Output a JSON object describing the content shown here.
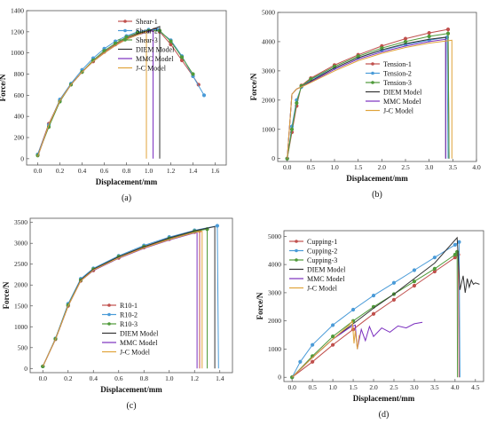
{
  "chart_data": [
    {
      "type": "line",
      "caption": "(a)",
      "xlabel": "Displacement/mm",
      "ylabel": "Force/N",
      "xlim": [
        -0.1,
        1.7
      ],
      "ylim": [
        -60,
        1400
      ],
      "xticks": [
        0.0,
        0.2,
        0.4,
        0.6,
        0.8,
        1.0,
        1.2,
        1.4,
        1.6
      ],
      "xtick_labels": [
        "0.0",
        "0.2",
        "0.4",
        "0.6",
        "0.8",
        "1.0",
        "1.2",
        "1.4",
        "1.6"
      ],
      "yticks": [
        0,
        200,
        400,
        600,
        800,
        1000,
        1200,
        1400
      ],
      "ytick_labels": [
        "0",
        "200",
        "400",
        "600",
        "800",
        "1000",
        "1200",
        "1400"
      ],
      "legend_position": "top-right",
      "grid": false,
      "series": [
        {
          "name": "Shear-1",
          "color": "#c0504d",
          "marker": "circle",
          "x": [
            0,
            0.1,
            0.2,
            0.3,
            0.4,
            0.5,
            0.6,
            0.7,
            0.8,
            0.9,
            1.0,
            1.05,
            1.1,
            1.2,
            1.3,
            1.4,
            1.45
          ],
          "y": [
            40,
            330,
            550,
            700,
            820,
            920,
            1010,
            1080,
            1140,
            1190,
            1210,
            1220,
            1200,
            1080,
            930,
            780,
            700
          ]
        },
        {
          "name": "Shear-2",
          "color": "#4a9bd8",
          "marker": "circle",
          "x": [
            0,
            0.1,
            0.2,
            0.3,
            0.4,
            0.5,
            0.6,
            0.7,
            0.8,
            0.9,
            1.0,
            1.08,
            1.2,
            1.3,
            1.4,
            1.5
          ],
          "y": [
            40,
            320,
            560,
            710,
            840,
            950,
            1040,
            1110,
            1160,
            1200,
            1220,
            1220,
            1120,
            970,
            780,
            600
          ]
        },
        {
          "name": "Shear-3",
          "color": "#4f9a3a",
          "marker": "circle",
          "x": [
            0,
            0.1,
            0.2,
            0.3,
            0.4,
            0.5,
            0.6,
            0.7,
            0.8,
            0.9,
            1.0,
            1.1,
            1.2,
            1.3,
            1.4
          ],
          "y": [
            30,
            300,
            540,
            700,
            820,
            930,
            1020,
            1090,
            1150,
            1190,
            1210,
            1210,
            1110,
            960,
            800
          ]
        },
        {
          "name": "DIEM Model",
          "color": "#333333",
          "marker": "none",
          "x": [
            0,
            0.1,
            0.2,
            0.3,
            0.4,
            0.5,
            0.6,
            0.7,
            0.8,
            0.9,
            1.0,
            1.1,
            1.1
          ],
          "y": [
            20,
            320,
            550,
            700,
            820,
            920,
            1000,
            1070,
            1130,
            1180,
            1210,
            1250,
            0
          ]
        },
        {
          "name": "MMC Model",
          "color": "#7b2fbf",
          "marker": "none",
          "x": [
            0,
            0.1,
            0.2,
            0.3,
            0.4,
            0.5,
            0.6,
            0.7,
            0.8,
            0.9,
            1.0,
            1.04,
            1.04
          ],
          "y": [
            20,
            320,
            550,
            700,
            820,
            920,
            1000,
            1070,
            1130,
            1170,
            1200,
            1210,
            0
          ]
        },
        {
          "name": "J-C Model",
          "color": "#e0a33a",
          "marker": "none",
          "x": [
            0,
            0.1,
            0.2,
            0.3,
            0.4,
            0.5,
            0.6,
            0.7,
            0.8,
            0.9,
            0.98,
            0.98
          ],
          "y": [
            20,
            320,
            550,
            700,
            820,
            920,
            1000,
            1070,
            1130,
            1170,
            1200,
            0
          ]
        }
      ]
    },
    {
      "type": "line",
      "caption": "(b)",
      "xlabel": "Displacement/mm",
      "ylabel": "Force/N",
      "xlim": [
        -0.2,
        4.0
      ],
      "ylim": [
        -100,
        5000
      ],
      "xticks": [
        0.0,
        0.5,
        1.0,
        1.5,
        2.0,
        2.5,
        3.0,
        3.5,
        4.0
      ],
      "xtick_labels": [
        "0.0",
        "0.5",
        "1.0",
        "1.5",
        "2.0",
        "2.5",
        "3.0",
        "3.5",
        "4.0"
      ],
      "yticks": [
        0,
        1000,
        2000,
        3000,
        4000,
        5000
      ],
      "ytick_labels": [
        "0",
        "1000",
        "2000",
        "3000",
        "4000",
        "5000"
      ],
      "legend_position": "center-right",
      "grid": false,
      "series": [
        {
          "name": "Tension-1",
          "color": "#c0504d",
          "marker": "circle",
          "x": [
            0,
            0.1,
            0.2,
            0.3,
            0.5,
            1.0,
            1.5,
            2.0,
            2.5,
            3.0,
            3.4,
            3.42
          ],
          "y": [
            0,
            900,
            1800,
            2500,
            2750,
            3200,
            3550,
            3850,
            4100,
            4300,
            4420,
            0
          ]
        },
        {
          "name": "Tension-2",
          "color": "#4a9bd8",
          "marker": "circle",
          "x": [
            0,
            0.1,
            0.2,
            0.3,
            0.5,
            1.0,
            1.5,
            2.0,
            2.5,
            3.0,
            3.38,
            3.4
          ],
          "y": [
            0,
            1100,
            2000,
            2450,
            2700,
            3100,
            3450,
            3700,
            3900,
            4050,
            4150,
            0
          ]
        },
        {
          "name": "Tension-3",
          "color": "#4f9a3a",
          "marker": "circle",
          "x": [
            0,
            0.1,
            0.2,
            0.3,
            0.5,
            1.0,
            1.5,
            2.0,
            2.5,
            3.0,
            3.4,
            3.42
          ],
          "y": [
            0,
            1000,
            1900,
            2480,
            2720,
            3150,
            3500,
            3780,
            4000,
            4180,
            4280,
            0
          ]
        },
        {
          "name": "DIEM Model",
          "color": "#333333",
          "marker": "none",
          "x": [
            0,
            0.1,
            0.2,
            0.3,
            0.5,
            1.0,
            1.5,
            2.0,
            2.5,
            3.0,
            3.35,
            3.35
          ],
          "y": [
            0,
            2200,
            2380,
            2450,
            2650,
            3100,
            3450,
            3720,
            3930,
            4080,
            4150,
            0
          ]
        },
        {
          "name": "MMC Model",
          "color": "#7b2fbf",
          "marker": "none",
          "x": [
            0,
            0.1,
            0.2,
            0.3,
            0.5,
            1.0,
            1.5,
            2.0,
            2.5,
            3.0,
            3.35,
            3.35
          ],
          "y": [
            0,
            2200,
            2380,
            2450,
            2620,
            3050,
            3400,
            3650,
            3850,
            4000,
            4080,
            0
          ]
        },
        {
          "name": "J-C Model",
          "color": "#e0a33a",
          "marker": "none",
          "x": [
            0,
            0.1,
            0.2,
            0.3,
            0.5,
            1.0,
            1.5,
            2.0,
            2.5,
            3.0,
            3.48,
            3.48
          ],
          "y": [
            0,
            2200,
            2380,
            2450,
            2600,
            3000,
            3350,
            3600,
            3800,
            3950,
            4050,
            0
          ]
        }
      ]
    },
    {
      "type": "line",
      "caption": "(c)",
      "xlabel": "Displacement/mm",
      "ylabel": "Force/N",
      "xlim": [
        -0.1,
        1.5
      ],
      "ylim": [
        -100,
        3600
      ],
      "xticks": [
        0.0,
        0.2,
        0.4,
        0.6,
        0.8,
        1.0,
        1.2,
        1.4
      ],
      "xtick_labels": [
        "0.0",
        "0.2",
        "0.4",
        "0.6",
        "0.8",
        "1.0",
        "1.2",
        "1.4"
      ],
      "yticks": [
        0,
        500,
        1000,
        1500,
        2000,
        2500,
        3000,
        3500
      ],
      "ytick_labels": [
        "0",
        "500",
        "1000",
        "1500",
        "2000",
        "2500",
        "3000",
        "3500"
      ],
      "legend_position": "center-right",
      "grid": false,
      "series": [
        {
          "name": "R10-1",
          "color": "#c0504d",
          "marker": "circle",
          "x": [
            0,
            0.1,
            0.2,
            0.3,
            0.4,
            0.6,
            0.8,
            1.0,
            1.2,
            1.24,
            1.24
          ],
          "y": [
            50,
            700,
            1500,
            2100,
            2350,
            2650,
            2900,
            3100,
            3270,
            3300,
            0
          ]
        },
        {
          "name": "R10-2",
          "color": "#4a9bd8",
          "marker": "circle",
          "x": [
            0,
            0.1,
            0.2,
            0.3,
            0.4,
            0.6,
            0.8,
            1.0,
            1.2,
            1.38,
            1.39
          ],
          "y": [
            50,
            720,
            1550,
            2150,
            2400,
            2700,
            2950,
            3150,
            3310,
            3420,
            0
          ]
        },
        {
          "name": "R10-3",
          "color": "#4f9a3a",
          "marker": "circle",
          "x": [
            0,
            0.1,
            0.2,
            0.3,
            0.4,
            0.6,
            0.8,
            1.0,
            1.2,
            1.3,
            1.3
          ],
          "y": [
            50,
            710,
            1520,
            2120,
            2380,
            2680,
            2920,
            3120,
            3290,
            3340,
            0
          ]
        },
        {
          "name": "DIEM Model",
          "color": "#333333",
          "marker": "none",
          "x": [
            0,
            0.1,
            0.2,
            0.3,
            0.4,
            0.6,
            0.8,
            1.0,
            1.2,
            1.36,
            1.36
          ],
          "y": [
            50,
            700,
            1500,
            2120,
            2380,
            2680,
            2920,
            3130,
            3300,
            3400,
            0
          ]
        },
        {
          "name": "MMC Model",
          "color": "#7b2fbf",
          "marker": "none",
          "x": [
            0,
            0.1,
            0.2,
            0.3,
            0.4,
            0.6,
            0.8,
            1.0,
            1.2,
            1.22,
            1.22
          ],
          "y": [
            50,
            700,
            1500,
            2100,
            2350,
            2640,
            2880,
            3080,
            3250,
            3260,
            0
          ]
        },
        {
          "name": "J-C Model",
          "color": "#e0a33a",
          "marker": "none",
          "x": [
            0,
            0.1,
            0.2,
            0.3,
            0.4,
            0.6,
            0.8,
            1.0,
            1.2,
            1.26,
            1.26
          ],
          "y": [
            50,
            700,
            1500,
            2100,
            2360,
            2650,
            2890,
            3090,
            3260,
            3290,
            0
          ]
        }
      ]
    },
    {
      "type": "line",
      "caption": "(d)",
      "xlabel": "Displacement/mm",
      "ylabel": "Force/N",
      "xlim": [
        -0.2,
        4.7
      ],
      "ylim": [
        -150,
        5200
      ],
      "xticks": [
        0.0,
        0.5,
        1.0,
        1.5,
        2.0,
        2.5,
        3.0,
        3.5,
        4.0,
        4.5
      ],
      "xtick_labels": [
        "0.0",
        "0.5",
        "1.0",
        "1.5",
        "2.0",
        "2.5",
        "3.0",
        "3.5",
        "4.0",
        "4.5"
      ],
      "yticks": [
        0,
        1000,
        2000,
        3000,
        4000,
        5000
      ],
      "ytick_labels": [
        "0",
        "1000",
        "2000",
        "3000",
        "4000",
        "5000"
      ],
      "legend_position": "top-left",
      "grid": false,
      "series": [
        {
          "name": "Cupping-1",
          "color": "#c0504d",
          "marker": "circle",
          "x": [
            0,
            0.5,
            1.0,
            1.5,
            2.0,
            2.5,
            3.0,
            3.5,
            4.0,
            4.08,
            4.1
          ],
          "y": [
            0,
            550,
            1150,
            1700,
            2250,
            2750,
            3250,
            3750,
            4250,
            4350,
            0
          ]
        },
        {
          "name": "Cupping-2",
          "color": "#4a9bd8",
          "marker": "circle",
          "x": [
            0,
            0.2,
            0.5,
            1.0,
            1.5,
            2.0,
            2.5,
            3.0,
            3.5,
            4.0,
            4.1,
            4.12
          ],
          "y": [
            0,
            550,
            1150,
            1850,
            2400,
            2900,
            3350,
            3800,
            4250,
            4700,
            4800,
            0
          ]
        },
        {
          "name": "Cupping-3",
          "color": "#4f9a3a",
          "marker": "circle",
          "x": [
            0,
            0.5,
            1.0,
            1.5,
            2.0,
            2.5,
            3.0,
            3.5,
            4.0,
            4.05,
            4.06
          ],
          "y": [
            0,
            750,
            1450,
            2000,
            2500,
            2950,
            3400,
            3850,
            4350,
            4450,
            0
          ]
        },
        {
          "name": "DIEM Model",
          "color": "#333333",
          "marker": "none",
          "x": [
            0,
            0.5,
            1.0,
            1.5,
            2.0,
            2.5,
            3.0,
            3.5,
            4.05,
            4.12,
            4.2,
            4.25,
            4.3,
            4.35,
            4.4,
            4.45,
            4.5,
            4.6
          ],
          "y": [
            0,
            700,
            1350,
            1900,
            2450,
            2950,
            3500,
            4050,
            4950,
            3100,
            3600,
            3000,
            3500,
            3200,
            3450,
            3300,
            3350,
            3300
          ]
        },
        {
          "name": "MMC Model",
          "color": "#7b2fbf",
          "marker": "none",
          "x": [
            0,
            0.5,
            1.0,
            1.4,
            1.55,
            1.6,
            1.7,
            1.8,
            1.9,
            2.0,
            2.2,
            2.4,
            2.6,
            2.8,
            3.0,
            3.2
          ],
          "y": [
            0,
            700,
            1350,
            1750,
            1850,
            1000,
            1700,
            1300,
            1800,
            1450,
            1750,
            1600,
            1820,
            1750,
            1900,
            1950
          ]
        },
        {
          "name": "J-C Model",
          "color": "#e0a33a",
          "marker": "none",
          "x": [
            0,
            0.5,
            1.0,
            1.4,
            1.48,
            1.52,
            1.55,
            1.6,
            1.65
          ],
          "y": [
            0,
            700,
            1350,
            1850,
            2000,
            1200,
            1650,
            1000,
            1500
          ]
        }
      ]
    }
  ]
}
